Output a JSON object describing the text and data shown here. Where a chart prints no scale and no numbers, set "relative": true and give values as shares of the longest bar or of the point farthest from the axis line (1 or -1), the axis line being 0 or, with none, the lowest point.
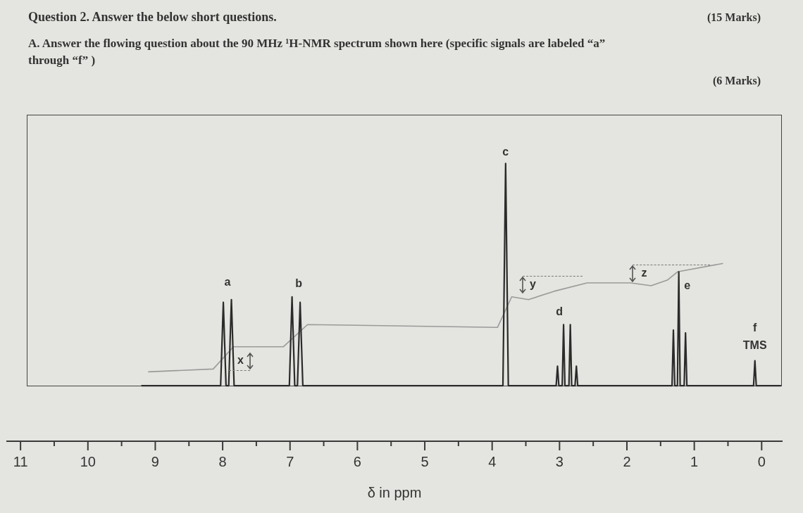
{
  "chart_data": {
    "type": "line",
    "title": "Question 2. Answer the below short questions.",
    "subtitle": "A. Answer the flowing question about the 90 MHz ¹H-NMR spectrum shown here (specific signals are labeled “a” through “f” )",
    "xlabel": "δ in ppm",
    "relative": true,
    "xlim": [
      11.2,
      -0.3
    ],
    "xticks": [
      11,
      {
        "value": 10.5,
        "label": null
      },
      10,
      {
        "value": 9.5,
        "label": null
      },
      9,
      {
        "value": 8.5,
        "label": null
      },
      8,
      {
        "value": 7.5,
        "label": null
      },
      7,
      {
        "value": 6.5,
        "label": null
      },
      6,
      {
        "value": 5.5,
        "label": null
      },
      5,
      {
        "value": 4.5,
        "label": null
      },
      4,
      {
        "value": 3.5,
        "label": null
      },
      3,
      {
        "value": 2.5,
        "label": null
      },
      2,
      {
        "value": 1.5,
        "label": null
      },
      1,
      {
        "value": 0.5,
        "label": null
      },
      0
    ],
    "series": [
      {
        "color": "#2b2b2b",
        "x": [
          9.2,
          8.03,
          7.99,
          7.95,
          7.91,
          7.87,
          7.83,
          7.01,
          6.97,
          6.93,
          6.89,
          6.85,
          6.81,
          3.84,
          3.8,
          3.76,
          3.05,
          3.03,
          3.01,
          2.96,
          2.94,
          2.92,
          2.86,
          2.84,
          2.82,
          2.77,
          2.75,
          2.73,
          1.33,
          1.31,
          1.29,
          1.25,
          1.23,
          1.21,
          1.15,
          1.13,
          1.11,
          0.12,
          0.1,
          0.08,
          -0.28
        ],
        "values": [
          0.2,
          0.2,
          0.5,
          0.2,
          0.2,
          0.51,
          0.2,
          0.2,
          0.52,
          0.2,
          0.2,
          0.5,
          0.2,
          0.2,
          1,
          0.2,
          0.2,
          0.27,
          0.2,
          0.2,
          0.42,
          0.2,
          0.2,
          0.42,
          0.2,
          0.2,
          0.27,
          0.2,
          0.2,
          0.4,
          0.2,
          0.2,
          0.61,
          0.2,
          0.2,
          0.39,
          0.2,
          0.2,
          0.29,
          0.2,
          0.2
        ]
      },
      {
        "color": "#9a9a9a",
        "x": [
          9.1,
          8.14,
          7.84,
          7.1,
          6.74,
          3.92,
          3.71,
          3.46,
          3.08,
          2.59,
          1.95,
          1.64,
          1.4,
          1.25,
          0.58
        ],
        "values": [
          0.25,
          0.26,
          0.34,
          0.34,
          0.42,
          0.41,
          0.52,
          0.51,
          0.54,
          0.57,
          0.57,
          0.56,
          0.58,
          0.61,
          0.64
        ]
      }
    ],
    "annotations": [
      "(15 Marks)",
      "(6 Marks)",
      {
        "text": "a",
        "x": 7.99,
        "y": 0.5
      },
      {
        "text": "b",
        "x": 6.85,
        "y": 0.5
      },
      {
        "text": "c",
        "x": 3.8,
        "y": 1
      },
      {
        "text": "d",
        "x": 2.94,
        "y": 0.42
      },
      {
        "text": "e",
        "x": 1.23,
        "y": 0.61
      },
      {
        "text": "f",
        "x": 0.1,
        "y": 0.29
      },
      {
        "text": "TMS",
        "x": 0.1,
        "y": 0.29
      },
      {
        "text": "x",
        "x": 7.84,
        "y": 0.34
      },
      {
        "text": "y",
        "x": 3.71,
        "y": 0.52
      },
      {
        "text": "z",
        "x": 1.64,
        "y": 0.56
      }
    ]
  }
}
